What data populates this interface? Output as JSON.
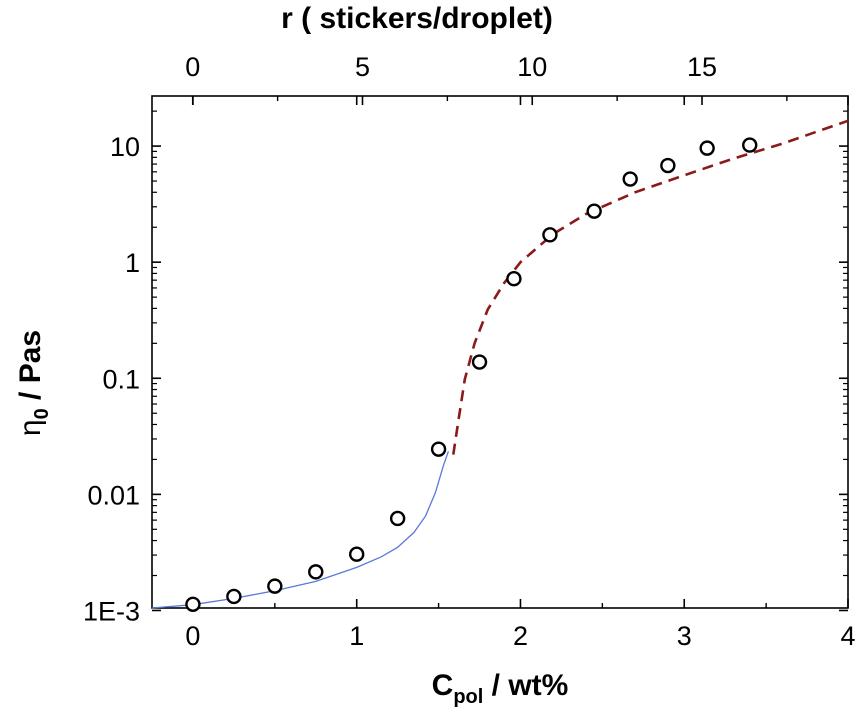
{
  "chart_data": {
    "type": "scatter",
    "bottom_axis": {
      "label_main": "C",
      "label_sub": "pol",
      "label_rest": " / wt%",
      "range": [
        -0.25,
        4
      ],
      "ticks": [
        0,
        1,
        2,
        3,
        4
      ],
      "tick_labels": [
        "0",
        "1",
        "2",
        "3",
        "4"
      ]
    },
    "top_axis": {
      "label": "r ( stickers/droplet)",
      "range": [
        -1.2,
        19.3
      ],
      "ticks": [
        0,
        5,
        10,
        15
      ],
      "tick_labels": [
        "0",
        "5",
        "10",
        "15"
      ]
    },
    "left_axis": {
      "label_main": "η",
      "label_sub": "0",
      "label_rest": " / Pas",
      "scale": "log",
      "range": [
        0.00105,
        27
      ],
      "ticks": [
        0.001,
        0.01,
        0.1,
        1,
        10
      ],
      "tick_labels": [
        "1E-3",
        "0.01",
        "0.1",
        "1",
        "10"
      ]
    },
    "grid": false,
    "legend": "none",
    "points": {
      "marker": "open-circle",
      "x": [
        0,
        0.25,
        0.5,
        0.75,
        1.0,
        1.25,
        1.5,
        1.75,
        1.96,
        2.18,
        2.45,
        2.67,
        2.9,
        3.14,
        3.4
      ],
      "y": [
        0.00113,
        0.00132,
        0.00162,
        0.00215,
        0.00305,
        0.0062,
        0.0245,
        0.138,
        0.72,
        1.72,
        2.75,
        5.2,
        6.8,
        9.6,
        10.2
      ]
    },
    "fit_lines": [
      {
        "style": "solid",
        "color": "#5b78d8",
        "x": [
          -0.25,
          0,
          0.25,
          0.5,
          0.75,
          1.0,
          1.15,
          1.25,
          1.35,
          1.42,
          1.48,
          1.53,
          1.56
        ],
        "y": [
          0.00105,
          0.00112,
          0.00127,
          0.00148,
          0.00178,
          0.00235,
          0.0029,
          0.0035,
          0.0047,
          0.0065,
          0.0103,
          0.0178,
          0.0235
        ]
      },
      {
        "style": "dashed",
        "color": "#8b1a1a",
        "x": [
          1.59,
          1.62,
          1.66,
          1.72,
          1.8,
          1.9,
          2.0,
          2.2,
          2.4,
          2.7,
          3.0,
          3.3,
          3.6,
          4.0
        ],
        "y": [
          0.022,
          0.042,
          0.098,
          0.2,
          0.39,
          0.66,
          1.0,
          1.75,
          2.6,
          4.0,
          5.6,
          7.8,
          10.5,
          16.5
        ]
      }
    ]
  }
}
